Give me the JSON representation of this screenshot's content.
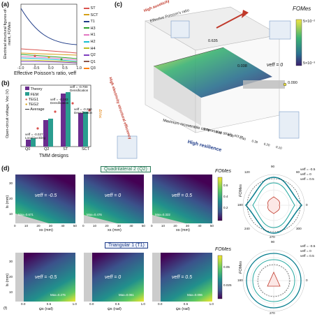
{
  "panel_a": {
    "letter": "(a)",
    "ylabel": "Electrical structural figures-of-merit, FOMes",
    "xlabel": "Effective Poisson's ratio, νeff",
    "xticks": [
      "-1.0",
      "-0.5",
      "0.0",
      "0.5",
      "1.0"
    ],
    "legend": [
      {
        "name": "ST",
        "color": "#d9534f"
      },
      {
        "name": "SCT",
        "color": "#d4a017"
      },
      {
        "name": "T1",
        "color": "#1f3c88"
      },
      {
        "name": "H3",
        "color": "#2ca02c"
      },
      {
        "name": "H1",
        "color": "#e377c2"
      },
      {
        "name": "H2",
        "color": "#17becf"
      },
      {
        "name": "H4",
        "color": "#bcbd22"
      },
      {
        "name": "Q2",
        "color": "#7f3fbf"
      },
      {
        "name": "Q1",
        "color": "#8c564b"
      },
      {
        "name": "Q3",
        "color": "#ff7f0e"
      }
    ]
  },
  "panel_b": {
    "letter": "(b)",
    "ylabel": "Open-circuit voltage, Voc (V)",
    "y2label": "ΔVoc",
    "xlabel": "TMM designs",
    "categories": [
      "Q0",
      "Q2",
      "ST",
      "SCT"
    ],
    "legend": [
      "Theory",
      "FEM",
      "TEG1",
      "TEG2",
      "Average"
    ],
    "annotations": [
      {
        "text": "νeff = -0.027",
        "sub": "Local buckling"
      },
      {
        "text": "νeff = -0.183",
        "sub": "Densification"
      },
      {
        "text": "νeff = -0.700",
        "sub": "Densification"
      },
      {
        "text": "νeff = -0.250",
        "sub": "Densification"
      }
    ]
  },
  "panel_c": {
    "letter": "(c)",
    "colorbar_title": "FOMes",
    "colorbar_ticks": [
      "5×10⁻²",
      "5×10⁻³"
    ],
    "axis_left": "High electricity structural efficiency",
    "axis_top": "Effective Poisson's ratio",
    "axis_bottom": "Maximum recoverable compressive strain, εcr,m",
    "high_auxeticity": "High auxeticity",
    "high_resilience": "High resilience",
    "values": [
      "0.635",
      "0.038",
      "0.090"
    ],
    "nu_label": "νeff = 0",
    "ticks_x": [
      "0.70",
      "0.60",
      "0.50",
      "0.40",
      "0.30",
      "0.20",
      "0.10"
    ]
  },
  "panel_d": {
    "letter": "(d)",
    "section1": "Quadrilateral 2 (Q2)",
    "section2": "Triangular 1 (T1)",
    "row1": {
      "ylabel": "ls (mm)",
      "xlabel": "xs (mm)",
      "plots": [
        {
          "nu": "νeff = -0.5",
          "max": "Max=0.671"
        },
        {
          "nu": "νeff = 0",
          "max": "Max=0.476"
        },
        {
          "nu": "νeff = 0.5",
          "max": "Max=0.322"
        }
      ],
      "xticks": [
        "0",
        "10",
        "20",
        "30",
        "40",
        "50"
      ],
      "yticks": [
        "10",
        "20",
        "30"
      ],
      "colorbar_title": "FOMes",
      "colorbar_ticks": [
        "0.6",
        "0.4",
        "0.2"
      ],
      "polar_legend": [
        "νeff = -0.5",
        "νeff = 0",
        "νeff = 0.5"
      ],
      "polar_angles": [
        "90",
        "270",
        "0",
        "180",
        "240",
        "300",
        "60",
        "120"
      ],
      "polar_label": "FOMes"
    },
    "row2": {
      "ylabel": "ls (mm)",
      "xlabel": "ψs (rad)",
      "plots": [
        {
          "nu": "νeff = -0.5",
          "max": "Max=0.275"
        },
        {
          "nu": "νeff = 0",
          "max": "Max=0.061"
        },
        {
          "nu": "νeff = 0.5",
          "max": "Max=0.096"
        }
      ],
      "xticks": [
        "0.0",
        "0.5",
        "1.0"
      ],
      "yticks": [
        "10",
        "20",
        "30"
      ],
      "colorbar_title": "FOMes",
      "colorbar_ticks": [
        "0.05",
        "0.025"
      ],
      "polar_legend": [
        "νeff = -0.5",
        "νeff = 0",
        "νeff = 0.5"
      ],
      "polar_angles": [
        "90",
        "270",
        "0",
        "180"
      ],
      "polar_label": "FOMes",
      "sub_letter": "(f)"
    }
  }
}
